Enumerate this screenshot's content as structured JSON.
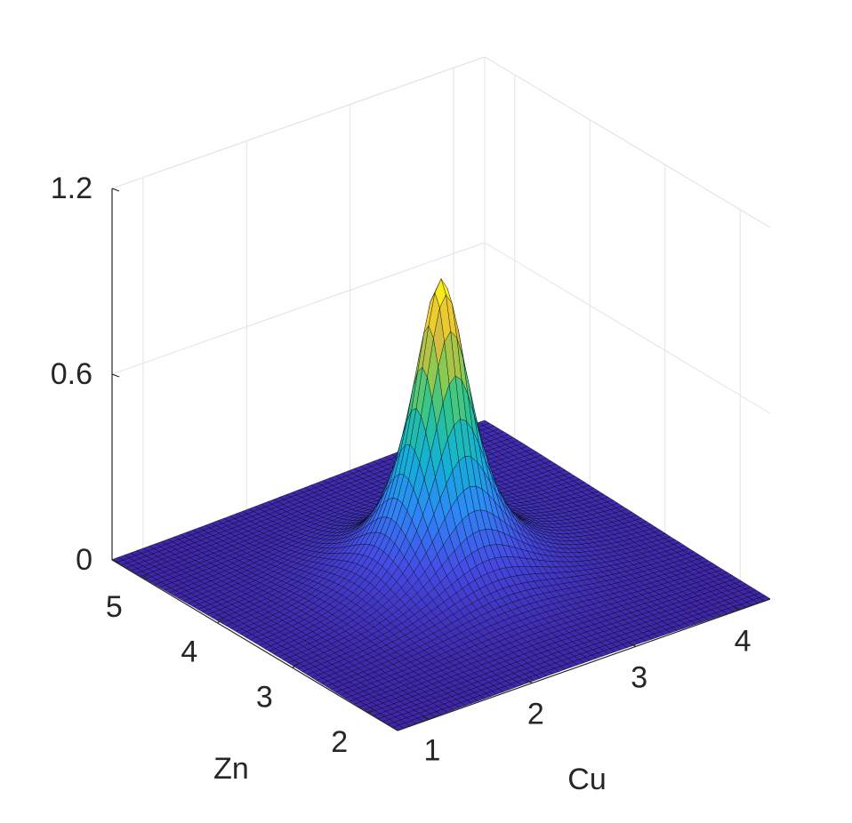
{
  "chart_data": {
    "type": "surface",
    "title": "",
    "colormap": "parula",
    "grid": true,
    "view": "3d-isometric",
    "xlabel": "Cu",
    "ylabel": "Zn",
    "zlabel": "",
    "xlim": [
      0.7,
      4.3
    ],
    "ylim": [
      1.6,
      5.4
    ],
    "zlim": [
      0,
      1.2
    ],
    "xticks": [
      1,
      2,
      3,
      4
    ],
    "xtick_labels": [
      "1",
      "2",
      "3",
      "4"
    ],
    "yticks": [
      2,
      3,
      4,
      5
    ],
    "ytick_labels": [
      "2",
      "3",
      "4",
      "5"
    ],
    "zticks": [
      0,
      0.6,
      1.2
    ],
    "ztick_labels": [
      "0",
      "0.6",
      "1.2"
    ],
    "peak": {
      "x": 2.5,
      "y": 3.5,
      "z": 0.97
    },
    "baseline_z": 0.0
  },
  "colors": {
    "low": "#3e26a8",
    "mid": "#13beb8",
    "high": "#f9fb15",
    "edge": "#000000",
    "grid": "#e3e3e3",
    "axis": "#262626"
  }
}
